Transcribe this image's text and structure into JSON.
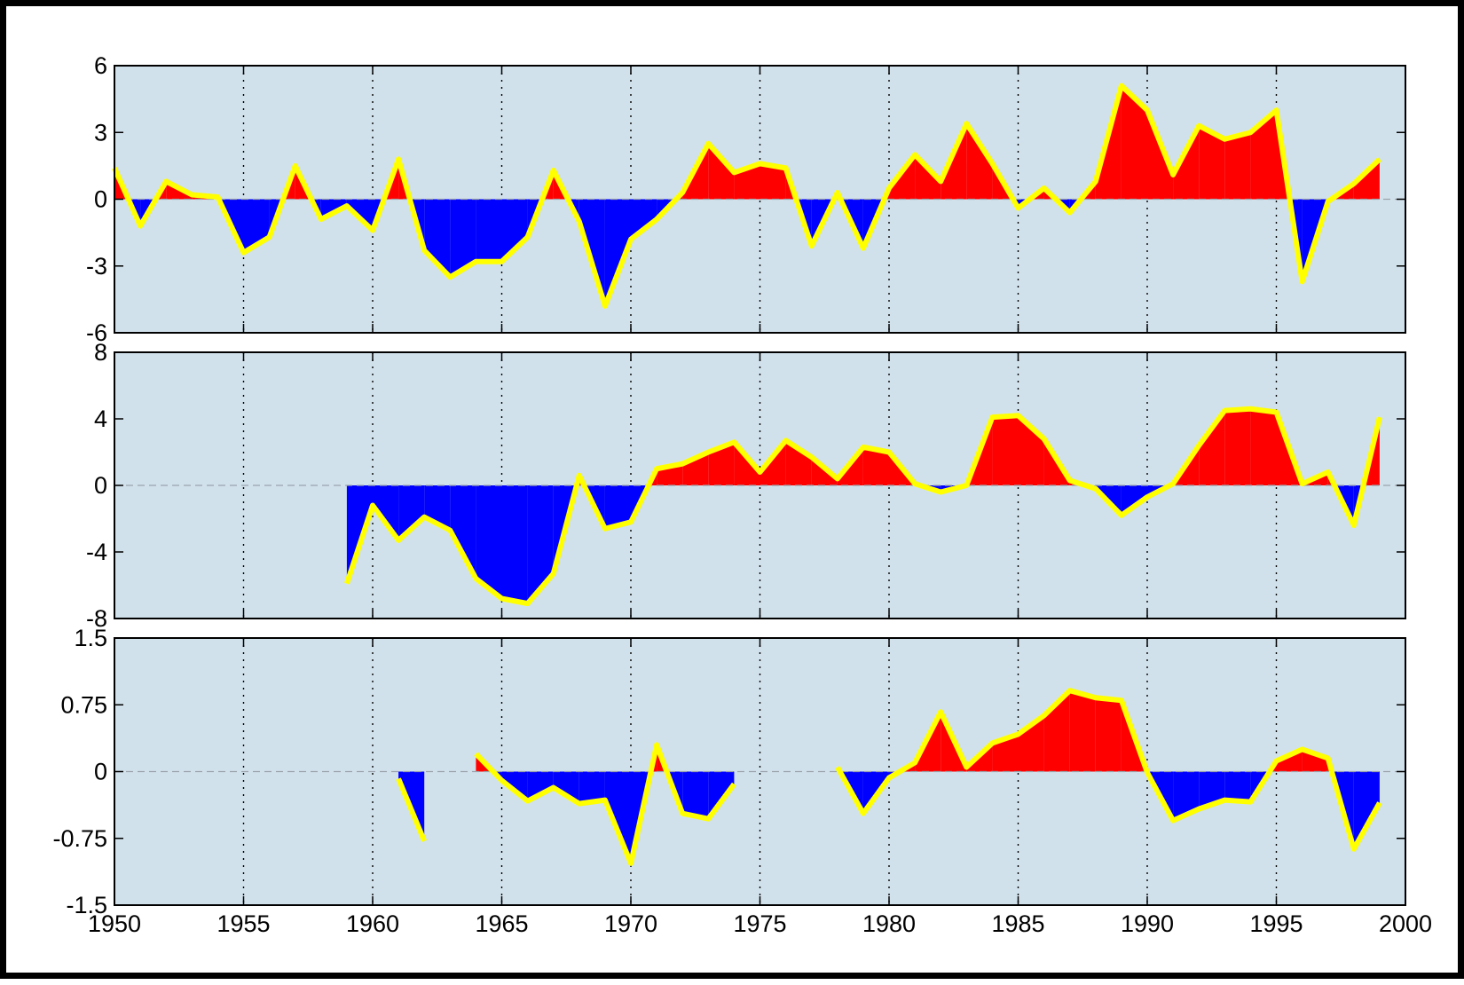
{
  "colors": {
    "panel_background": "#d1e1ec",
    "positive_fill": "#ff0000",
    "negative_fill": "#0000ff",
    "line": "#ffff00",
    "zero_line": "#9aa3ab",
    "grid": "#000000"
  },
  "chart_data": [
    {
      "type": "area",
      "title": "",
      "xlabel": "",
      "ylabel": "",
      "xlim": [
        1950,
        2000
      ],
      "ylim": [
        -6,
        6
      ],
      "yticks": [
        6,
        3,
        0,
        -3,
        -6
      ],
      "ytick_labels": [
        "6",
        "3",
        "0",
        "-3",
        "-6"
      ],
      "grid": "vertical dotted",
      "x": [
        1950,
        1951,
        1952,
        1953,
        1954,
        1955,
        1956,
        1957,
        1958,
        1959,
        1960,
        1961,
        1962,
        1963,
        1964,
        1965,
        1966,
        1967,
        1968,
        1969,
        1970,
        1971,
        1972,
        1973,
        1974,
        1975,
        1976,
        1977,
        1978,
        1979,
        1980,
        1981,
        1982,
        1983,
        1984,
        1985,
        1986,
        1987,
        1988,
        1989,
        1990,
        1991,
        1992,
        1993,
        1994,
        1995,
        1996,
        1997,
        1998,
        1999
      ],
      "values": [
        1.4,
        -1.2,
        0.8,
        0.2,
        0.1,
        -2.4,
        -1.7,
        1.5,
        -0.9,
        -0.3,
        -1.4,
        1.8,
        -2.3,
        -3.5,
        -2.8,
        -2.8,
        -1.7,
        1.3,
        -1.0,
        -4.8,
        -1.8,
        -0.9,
        0.3,
        2.5,
        1.2,
        1.6,
        1.4,
        -2.1,
        0.3,
        -2.2,
        0.5,
        2.0,
        0.8,
        3.4,
        1.6,
        -0.4,
        0.5,
        -0.6,
        0.8,
        5.1,
        4.0,
        1.1,
        3.3,
        2.7,
        3.0,
        4.0,
        -3.7,
        -0.1,
        0.7,
        1.8
      ]
    },
    {
      "type": "area",
      "title": "",
      "xlabel": "",
      "ylabel": "",
      "xlim": [
        1950,
        2000
      ],
      "ylim": [
        -8,
        8
      ],
      "yticks": [
        8,
        4,
        0,
        -4,
        -8
      ],
      "ytick_labels": [
        "8",
        "4",
        "0",
        "-4",
        "-8"
      ],
      "grid": "vertical dotted",
      "x": [
        1959,
        1960,
        1961,
        1962,
        1963,
        1964,
        1965,
        1966,
        1967,
        1968,
        1969,
        1970,
        1971,
        1972,
        1973,
        1974,
        1975,
        1976,
        1977,
        1978,
        1979,
        1980,
        1981,
        1982,
        1983,
        1984,
        1985,
        1986,
        1987,
        1988,
        1989,
        1990,
        1991,
        1992,
        1993,
        1994,
        1995,
        1996,
        1997,
        1998,
        1999
      ],
      "values": [
        -5.9,
        -1.2,
        -3.3,
        -1.9,
        -2.7,
        -5.6,
        -6.8,
        -7.1,
        -5.3,
        0.6,
        -2.6,
        -2.2,
        1.0,
        1.3,
        2.0,
        2.6,
        0.8,
        2.7,
        1.7,
        0.4,
        2.3,
        2.0,
        0.1,
        -0.4,
        0.0,
        4.1,
        4.2,
        2.8,
        0.3,
        -0.2,
        -1.8,
        -0.7,
        0.1,
        2.4,
        4.5,
        4.6,
        4.4,
        0.1,
        0.8,
        -2.4,
        4.1
      ]
    },
    {
      "type": "area",
      "title": "",
      "xlabel": "",
      "ylabel": "",
      "xlim": [
        1950,
        2000
      ],
      "ylim": [
        -1.5,
        1.5
      ],
      "yticks": [
        1.5,
        0.75,
        0,
        -0.75,
        -1.5
      ],
      "ytick_labels": [
        "1.5",
        "0.75",
        "0",
        "-0.75",
        "-1.5"
      ],
      "xticks": [
        1950,
        1955,
        1960,
        1965,
        1970,
        1975,
        1980,
        1985,
        1990,
        1995,
        2000
      ],
      "xtick_labels": [
        "1950",
        "1955",
        "1960",
        "1965",
        "1970",
        "1975",
        "1980",
        "1985",
        "1990",
        "1995",
        "2000"
      ],
      "grid": "vertical dotted",
      "segments": [
        {
          "x": [
            1961,
            1962
          ],
          "values": [
            -0.08,
            -0.78
          ]
        },
        {
          "x": [
            1964,
            1965,
            1966,
            1967,
            1968,
            1969,
            1970,
            1971,
            1972,
            1973,
            1974
          ],
          "values": [
            0.2,
            -0.1,
            -0.33,
            -0.18,
            -0.36,
            -0.32,
            -1.03,
            0.3,
            -0.47,
            -0.53,
            -0.14
          ]
        },
        {
          "x": [
            1978,
            1979,
            1980,
            1981,
            1982,
            1983,
            1984,
            1985,
            1986,
            1987,
            1988,
            1989,
            1990,
            1991,
            1992,
            1993,
            1994,
            1995,
            1996,
            1997,
            1998,
            1999
          ],
          "values": [
            0.05,
            -0.47,
            -0.07,
            0.1,
            0.67,
            0.05,
            0.32,
            0.42,
            0.63,
            0.91,
            0.83,
            0.8,
            -0.01,
            -0.55,
            -0.42,
            -0.32,
            -0.34,
            0.12,
            0.25,
            0.15,
            -0.87,
            -0.35
          ]
        }
      ]
    }
  ]
}
